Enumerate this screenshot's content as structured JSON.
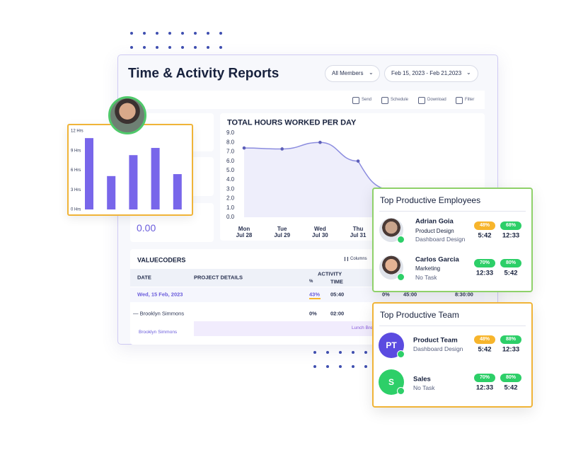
{
  "header": {
    "title": "Time & Activity Reports",
    "members_filter": "All Members",
    "date_range": "Feb 15, 2023 - Feb 21,2023"
  },
  "toolbar": [
    "Send",
    "Schedule",
    "Download",
    "Filter"
  ],
  "summary_value": "0.00",
  "hours_chart": {
    "type": "line",
    "title": "TOTAL HOURS WORKED PER DAY",
    "categories": [
      "Mon",
      "Tue",
      "Wed",
      "Thu"
    ],
    "category_dates": [
      "Jul 28",
      "Jul 29",
      "Jul 30",
      "Jul 31"
    ],
    "values": [
      7.4,
      7.3,
      8.0,
      6.0
    ],
    "ylim": [
      0,
      9
    ],
    "yticks": [
      {
        "value": 0,
        "label": "0.0"
      },
      {
        "value": 1,
        "label": "1.0"
      },
      {
        "value": 2,
        "label": "2.0"
      },
      {
        "value": 3,
        "label": "3.0"
      },
      {
        "value": 4,
        "label": "4.0"
      },
      {
        "value": 5,
        "label": "5.0"
      },
      {
        "value": 6,
        "label": "6.0"
      },
      {
        "value": 7,
        "label": "7.0"
      },
      {
        "value": 8,
        "label": "8.0"
      },
      {
        "value": 9,
        "label": "9.0"
      }
    ],
    "color": "#8b8cdf"
  },
  "bar_chart": {
    "type": "bar",
    "values": [
      10.9,
      5.1,
      8.3,
      9.4,
      5.4
    ],
    "ylim": [
      0,
      12
    ],
    "yticks": [
      {
        "value": 0,
        "label": "0 Hrs"
      },
      {
        "value": 3,
        "label": "3 Hrs"
      },
      {
        "value": 6,
        "label": "6 Hrs"
      },
      {
        "value": 9,
        "label": "9 Hrs"
      },
      {
        "value": 12,
        "label": "12 Hrs"
      }
    ],
    "color": "#7866ea"
  },
  "table": {
    "title": "VALUECODERS",
    "columns_button": "Columns",
    "headers": [
      "DATE",
      "PROJECT DETAILS",
      "ACTIVITY"
    ],
    "activity_subheaders": [
      "%",
      "TIME"
    ],
    "rows": [
      [
        "Wed, 15 Feb, 2023",
        "43%",
        "05:40",
        "0%",
        "45:00",
        "8:30:00"
      ],
      [
        "— Brooklyn Simmons",
        "0%",
        "02:00"
      ],
      [
        "Brooklyn Simmons",
        "Lunch Break"
      ]
    ]
  },
  "employees": {
    "title": "Top Productive Employees",
    "items": [
      {
        "name": "Adrian Goia",
        "role": "Product Design",
        "task": "Dashboard Design",
        "stats": [
          {
            "percent": "48%",
            "time": "5:42",
            "color": "#f7b52c"
          },
          {
            "percent": "68%",
            "time": "12:33",
            "color": "#2dcf68"
          }
        ]
      },
      {
        "name": "Carlos Garcia",
        "role": "Marketing",
        "task": "No Task",
        "stats": [
          {
            "percent": "70%",
            "time": "12:33",
            "color": "#2dcf68"
          },
          {
            "percent": "80%",
            "time": "5:42",
            "color": "#2dcf68"
          }
        ]
      }
    ]
  },
  "team": {
    "title": "Top Productive Team",
    "items": [
      {
        "initials": "PT",
        "color": "#5b4be0",
        "name": "Product Team",
        "task": "Dashboard Design",
        "stats": [
          {
            "percent": "48%",
            "time": "5:42",
            "color": "#f7b52c"
          },
          {
            "percent": "88%",
            "time": "12:33",
            "color": "#2dcf68"
          }
        ]
      },
      {
        "initials": "S",
        "color": "#2dcf68",
        "name": "Sales",
        "task": "No Task",
        "stats": [
          {
            "percent": "70%",
            "time": "12:33",
            "color": "#2dcf68"
          },
          {
            "percent": "80%",
            "time": "5:42",
            "color": "#2dcf68"
          }
        ]
      }
    ]
  }
}
